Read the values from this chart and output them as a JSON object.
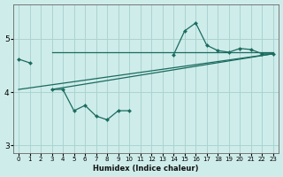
{
  "xlabel": "Humidex (Indice chaleur)",
  "bg_color": "#ceecea",
  "grid_color": "#aad4d0",
  "line_color": "#1a6b5e",
  "x_values": [
    0,
    1,
    2,
    3,
    4,
    5,
    6,
    7,
    8,
    9,
    10,
    11,
    12,
    13,
    14,
    15,
    16,
    17,
    18,
    19,
    20,
    21,
    22,
    23
  ],
  "main_y": [
    4.62,
    4.55,
    null,
    4.05,
    4.05,
    3.65,
    3.75,
    3.55,
    3.48,
    3.65,
    3.65,
    null,
    null,
    null,
    4.7,
    5.15,
    5.3,
    4.88,
    4.78,
    4.75,
    4.82,
    4.8,
    4.72,
    4.72
  ],
  "horiz_line": {
    "x": [
      3,
      23
    ],
    "y": [
      4.75,
      4.75
    ]
  },
  "reg_line1": {
    "x": [
      0,
      23
    ],
    "y": [
      4.05,
      4.72
    ]
  },
  "reg_line2": {
    "x": [
      3,
      23
    ],
    "y": [
      4.05,
      4.72
    ]
  },
  "ylim": [
    2.85,
    5.65
  ],
  "yticks": [
    3,
    4,
    5
  ],
  "xlim": [
    -0.5,
    23.5
  ],
  "xticks": [
    0,
    1,
    2,
    3,
    4,
    5,
    6,
    7,
    8,
    9,
    10,
    11,
    12,
    13,
    14,
    15,
    16,
    17,
    18,
    19,
    20,
    21,
    22,
    23
  ]
}
